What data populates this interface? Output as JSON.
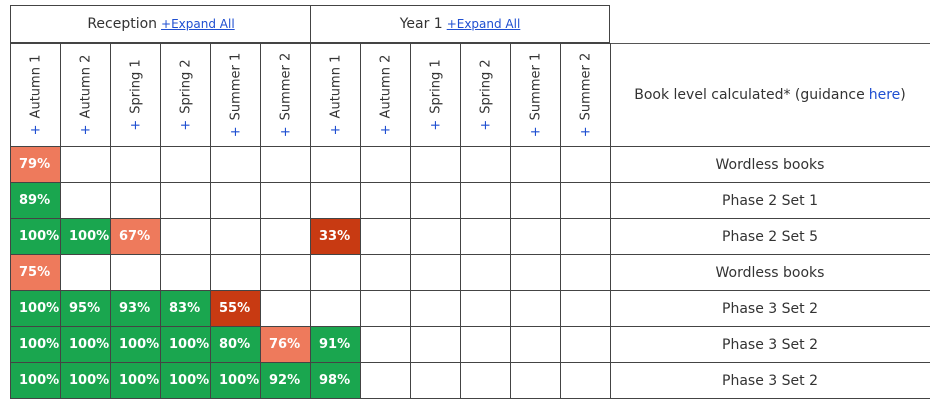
{
  "groups": {
    "reception": {
      "label": "Reception",
      "expand": "+Expand All"
    },
    "year1": {
      "label": "Year 1",
      "expand": "+Expand All"
    }
  },
  "columns": [
    {
      "plus": "+",
      "label": "Autumn 1"
    },
    {
      "plus": "+",
      "label": "Autumn 2"
    },
    {
      "plus": "+",
      "label": "Spring 1"
    },
    {
      "plus": "+",
      "label": "Spring 2"
    },
    {
      "plus": "+",
      "label": "Summer 1"
    },
    {
      "plus": "+",
      "label": "Summer 2"
    },
    {
      "plus": "+",
      "label": "Autumn 1"
    },
    {
      "plus": "+",
      "label": "Autumn 2"
    },
    {
      "plus": "+",
      "label": "Spring 1"
    },
    {
      "plus": "+",
      "label": "Spring 2"
    },
    {
      "plus": "+",
      "label": "Summer 1"
    },
    {
      "plus": "+",
      "label": "Summer 2"
    }
  ],
  "book_level_header": {
    "text": "Book level calculated* (guidance",
    "link": "here",
    "close": ")"
  },
  "colors": {
    "green": "#1aa64f",
    "salmon": "#ee7a5c",
    "red": "#c83a12"
  },
  "rows": [
    {
      "cells": [
        {
          "v": "79%",
          "c": "salmon"
        },
        null,
        null,
        null,
        null,
        null,
        null,
        null,
        null,
        null,
        null,
        null
      ],
      "book_level": "Wordless books"
    },
    {
      "cells": [
        {
          "v": "89%",
          "c": "green"
        },
        null,
        null,
        null,
        null,
        null,
        null,
        null,
        null,
        null,
        null,
        null
      ],
      "book_level": "Phase 2 Set 1"
    },
    {
      "cells": [
        {
          "v": "100%",
          "c": "green"
        },
        {
          "v": "100%",
          "c": "green"
        },
        {
          "v": "67%",
          "c": "salmon"
        },
        null,
        null,
        null,
        {
          "v": "33%",
          "c": "red"
        },
        null,
        null,
        null,
        null,
        null
      ],
      "book_level": "Phase 2 Set 5"
    },
    {
      "cells": [
        {
          "v": "75%",
          "c": "salmon"
        },
        null,
        null,
        null,
        null,
        null,
        null,
        null,
        null,
        null,
        null,
        null
      ],
      "book_level": "Wordless books"
    },
    {
      "cells": [
        {
          "v": "100%",
          "c": "green"
        },
        {
          "v": "95%",
          "c": "green"
        },
        {
          "v": "93%",
          "c": "green"
        },
        {
          "v": "83%",
          "c": "green"
        },
        {
          "v": "55%",
          "c": "red"
        },
        null,
        null,
        null,
        null,
        null,
        null,
        null
      ],
      "book_level": "Phase 3 Set 2"
    },
    {
      "cells": [
        {
          "v": "100%",
          "c": "green"
        },
        {
          "v": "100%",
          "c": "green"
        },
        {
          "v": "100%",
          "c": "green"
        },
        {
          "v": "100%",
          "c": "green"
        },
        {
          "v": "80%",
          "c": "green"
        },
        {
          "v": "76%",
          "c": "salmon"
        },
        {
          "v": "91%",
          "c": "green"
        },
        null,
        null,
        null,
        null,
        null
      ],
      "book_level": "Phase 3 Set 2"
    },
    {
      "cells": [
        {
          "v": "100%",
          "c": "green"
        },
        {
          "v": "100%",
          "c": "green"
        },
        {
          "v": "100%",
          "c": "green"
        },
        {
          "v": "100%",
          "c": "green"
        },
        {
          "v": "100%",
          "c": "green"
        },
        {
          "v": "92%",
          "c": "green"
        },
        {
          "v": "98%",
          "c": "green"
        },
        null,
        null,
        null,
        null,
        null
      ],
      "book_level": "Phase 3 Set 2"
    }
  ]
}
